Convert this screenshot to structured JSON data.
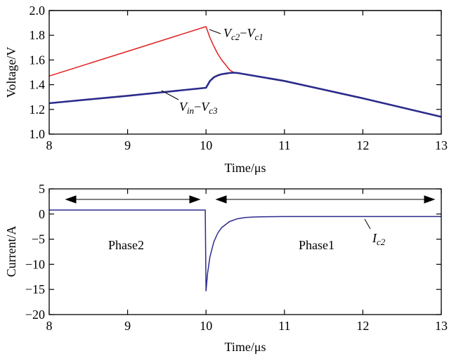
{
  "chart_data": [
    {
      "type": "line",
      "title": "",
      "xlabel": "Time/μs",
      "ylabel": "Voltage/V",
      "xlim": [
        8,
        13
      ],
      "ylim": [
        1.0,
        2.0
      ],
      "xticks": [
        "8",
        "9",
        "10",
        "11",
        "12",
        "13"
      ],
      "yticks": [
        "1.0",
        "1.2",
        "1.4",
        "1.6",
        "1.8",
        "2.0"
      ],
      "grid": false,
      "series": [
        {
          "name": "Vc2−Vc1",
          "name_main": "V",
          "name_sub1": "c2",
          "name_minus": "−",
          "name_sub2": "c1",
          "color": "#e02020",
          "x": [
            8.0,
            9.0,
            10.0,
            10.05,
            10.1,
            10.15,
            10.2,
            10.25,
            10.3,
            10.35,
            10.4,
            11.0,
            12.0,
            13.0
          ],
          "y": [
            1.47,
            1.67,
            1.87,
            1.78,
            1.71,
            1.65,
            1.6,
            1.56,
            1.52,
            1.5,
            1.495,
            1.43,
            1.29,
            1.14
          ]
        },
        {
          "name": "Vin−Vc3",
          "name_main": "V",
          "name_sub1": "in",
          "name_minus": "−",
          "name_sub2": "c3",
          "color": "#2b2b8c",
          "x": [
            8.0,
            9.0,
            10.0,
            10.05,
            10.1,
            10.15,
            10.2,
            10.25,
            10.3,
            10.35,
            10.4,
            11.0,
            12.0,
            13.0
          ],
          "y": [
            1.25,
            1.31,
            1.375,
            1.43,
            1.46,
            1.475,
            1.485,
            1.49,
            1.495,
            1.497,
            1.495,
            1.43,
            1.29,
            1.14
          ]
        }
      ]
    },
    {
      "type": "line",
      "title": "",
      "xlabel": "Time/μs",
      "ylabel": "Current/A",
      "xlim": [
        8,
        13
      ],
      "ylim": [
        -20,
        5
      ],
      "xticks": [
        "8",
        "9",
        "10",
        "11",
        "12",
        "13"
      ],
      "yticks": [
        "−20",
        "−15",
        "−10",
        "−5",
        "0",
        "5"
      ],
      "grid": false,
      "annotations": [
        "Phase2",
        "Phase1"
      ],
      "series": [
        {
          "name": "Ic2",
          "name_main": "I",
          "name_sub1": "c2",
          "color": "#2b2b8c",
          "x": [
            8.0,
            9.0,
            9.99,
            10.0,
            10.02,
            10.05,
            10.1,
            10.15,
            10.2,
            10.3,
            10.4,
            10.5,
            10.6,
            10.7,
            11.0,
            12.0,
            13.0
          ],
          "y": [
            0.8,
            0.8,
            0.8,
            -15.3,
            -11.8,
            -8.5,
            -5.5,
            -3.8,
            -2.7,
            -1.5,
            -0.95,
            -0.7,
            -0.6,
            -0.55,
            -0.5,
            -0.5,
            -0.5
          ]
        }
      ]
    }
  ]
}
